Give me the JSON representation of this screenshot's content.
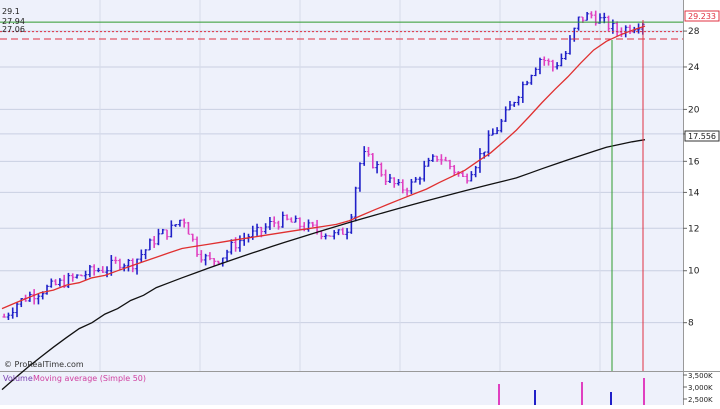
{
  "watermark": "© ProRealTime.com",
  "volume_legend": {
    "volume_label": "Volume",
    "ma_label": "Moving average (Simple 50)"
  },
  "price_tags": {
    "top": "29.1",
    "mid": "27.94",
    "low": "27.06"
  },
  "right_axis_badges": {
    "last_price": "29.233",
    "ma200_value": "17.556"
  },
  "right_axis_ticks": [
    "28",
    "24",
    "20",
    "18",
    "16",
    "14",
    "12",
    "10",
    "8"
  ],
  "volume_axis_ticks": [
    "3,500K",
    "3,000K",
    "2,500K"
  ],
  "colors": {
    "up_bar": "#2020c8",
    "down_bar": "#e040c0",
    "ma_fast": "#e03030",
    "ma_slow": "#111111",
    "green_line": "#2e9a2e",
    "red_line": "#e03040",
    "plot_bg": "#eef1fb"
  },
  "chart_data": {
    "type": "line",
    "series": [
      {
        "name": "price",
        "values": [
          8.2,
          8.7,
          9.0,
          9.2,
          9.4,
          9.6,
          9.8,
          10.0,
          10.1,
          10.4,
          10.3,
          10.9,
          11.6,
          11.9,
          12.6,
          11.0,
          10.4,
          10.6,
          11.2,
          11.6,
          11.8,
          12.3,
          12.4,
          12.2,
          12.0,
          11.8,
          11.6,
          12.1,
          16.5,
          15.8,
          14.8,
          14.2,
          14.5,
          15.6,
          16.4,
          15.6,
          14.8,
          16.0,
          17.6,
          19.0,
          21.0,
          23.0,
          25.0,
          24.0,
          25.5,
          29.5,
          30.0,
          29.0,
          28.0,
          28.5,
          29.2
        ]
      },
      {
        "name": "",
        "values": [
          8.5,
          8.7,
          8.9,
          9.1,
          9.2,
          9.4,
          9.5,
          9.7,
          9.8,
          10.0,
          10.2,
          10.4,
          10.6,
          10.8,
          11.0,
          11.1,
          11.2,
          11.3,
          11.4,
          11.5,
          11.6,
          11.7,
          11.8,
          11.9,
          12.0,
          12.1,
          12.2,
          12.4,
          12.7,
          13.0,
          13.3,
          13.6,
          13.9,
          14.2,
          14.6,
          15.0,
          15.4,
          16.0,
          16.6,
          17.4,
          18.3,
          19.4,
          20.6,
          21.8,
          23.0,
          24.4,
          25.8,
          26.8,
          27.5,
          28.1,
          28.6
        ]
      },
      {
        "name": "",
        "values": [
          6.0,
          6.3,
          6.6,
          6.9,
          7.2,
          7.5,
          7.8,
          8.0,
          8.3,
          8.5,
          8.8,
          9.0,
          9.3,
          9.5,
          9.7,
          9.9,
          10.1,
          10.3,
          10.5,
          10.7,
          10.9,
          11.1,
          11.3,
          11.5,
          11.7,
          11.9,
          12.1,
          12.3,
          12.5,
          12.7,
          12.9,
          13.1,
          13.3,
          13.5,
          13.7,
          13.9,
          14.1,
          14.3,
          14.5,
          14.7,
          14.9,
          15.2,
          15.5,
          15.8,
          16.1,
          16.4,
          16.7,
          17.0,
          17.2,
          17.4,
          17.556
        ]
      }
    ],
    "horizontal_levels": [
      29.1,
      27.94,
      27.06
    ],
    "ylim": [
      6.5,
      32
    ],
    "grid": true
  }
}
